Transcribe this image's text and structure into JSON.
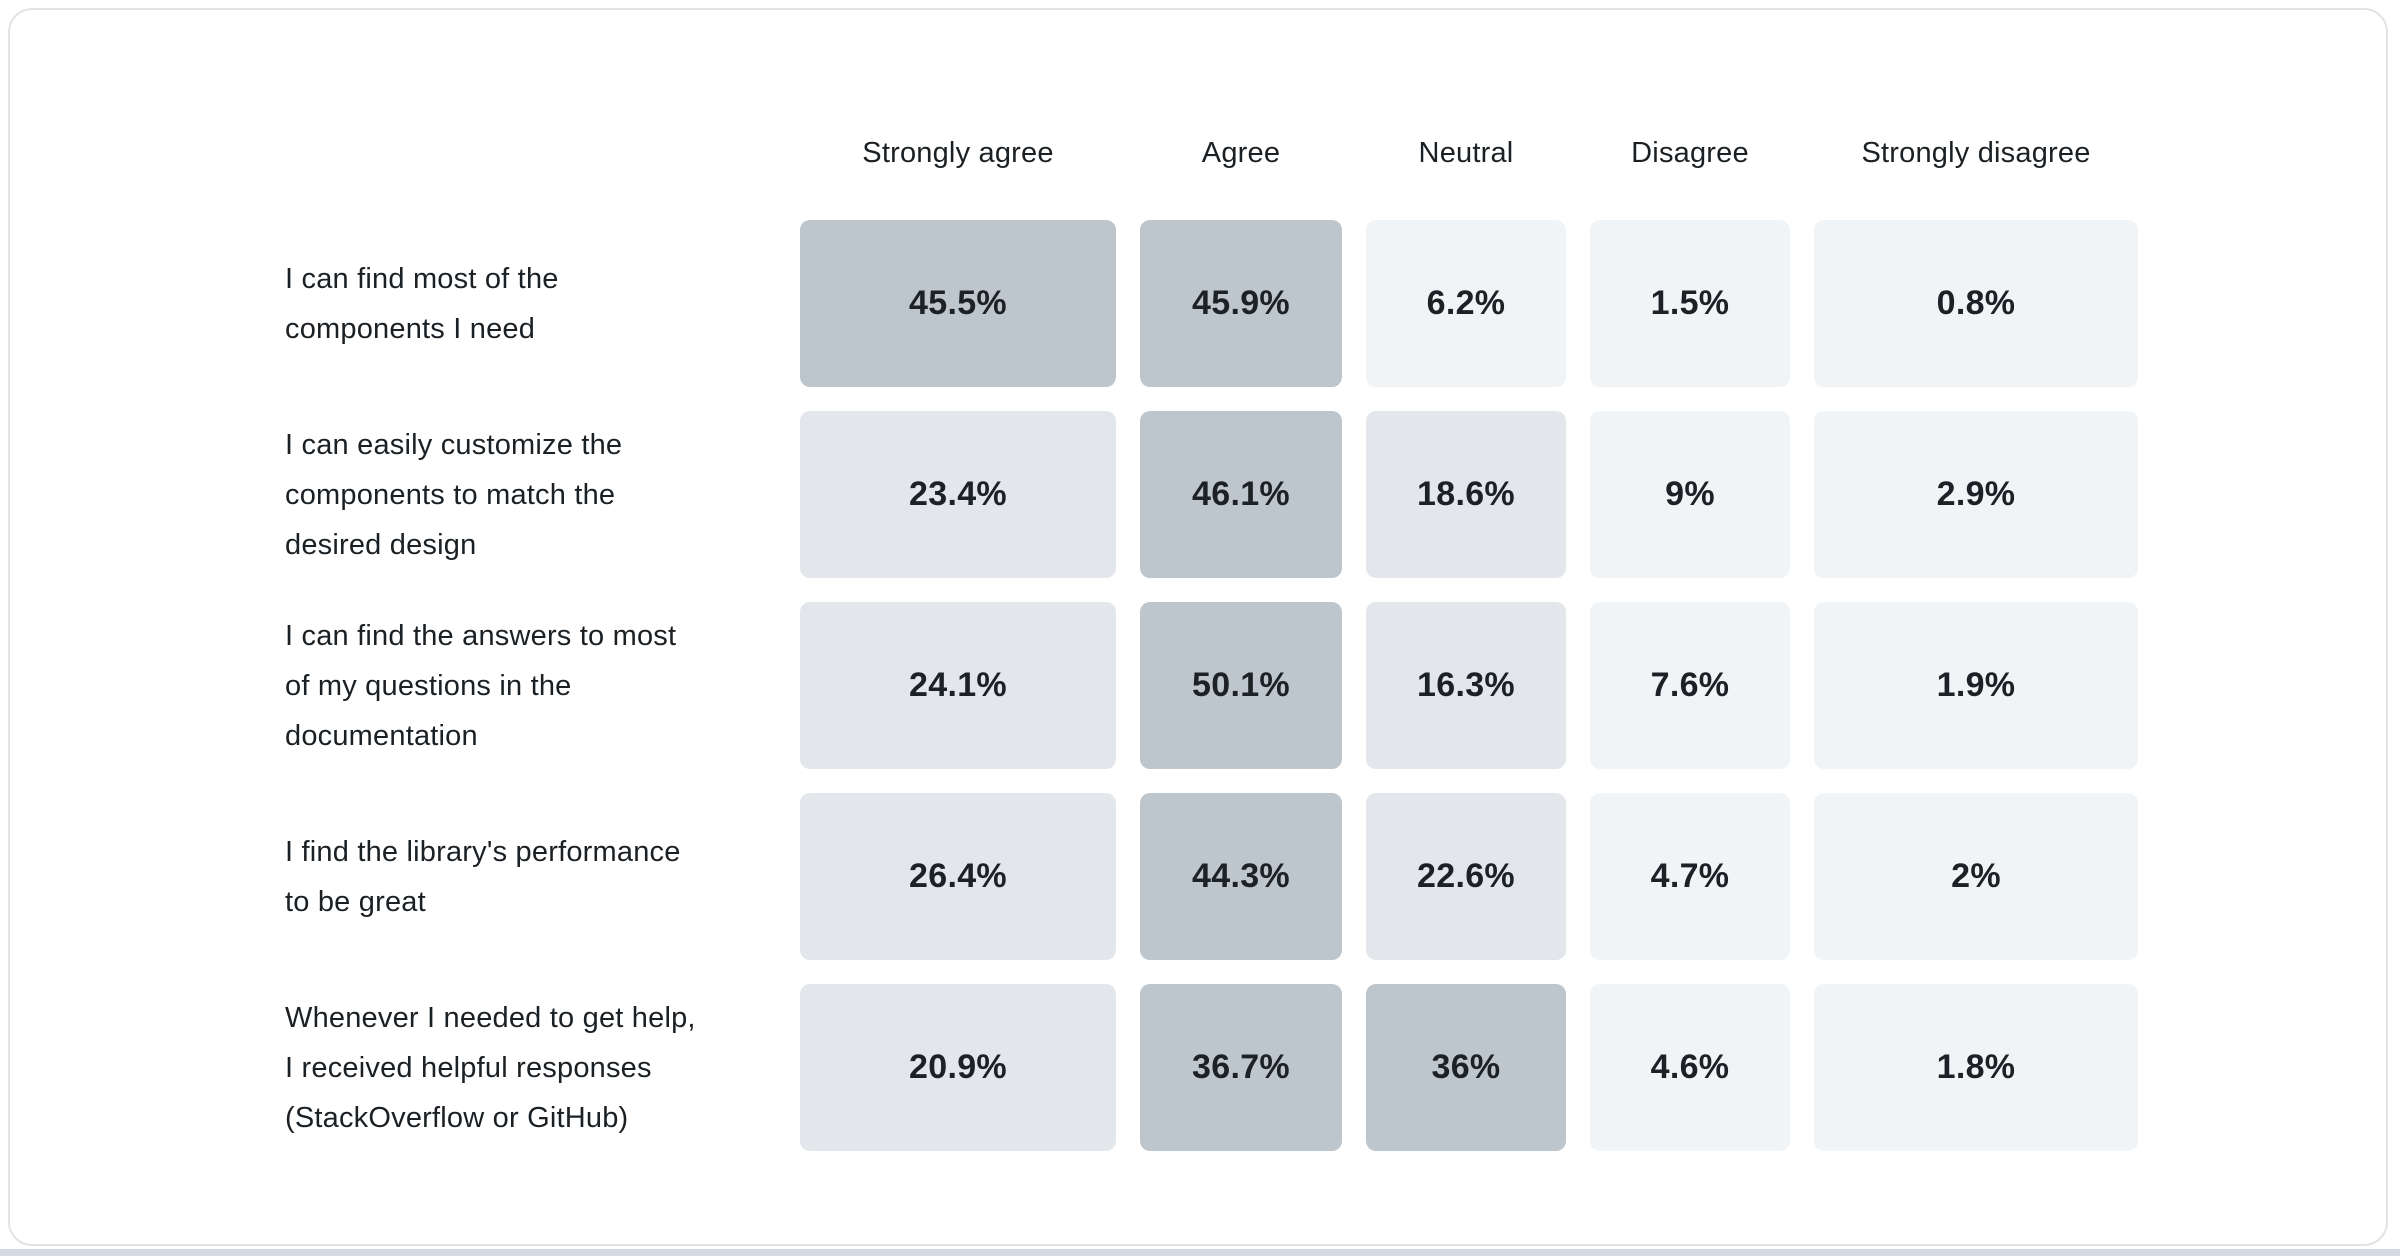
{
  "columns": [
    "Strongly agree",
    "Agree",
    "Neutral",
    "Disagree",
    "Strongly disagree"
  ],
  "rows": [
    {
      "label": "I can find most of the\ncomponents I need",
      "cells": [
        "45.5%",
        "45.9%",
        "6.2%",
        "1.5%",
        "0.8%"
      ]
    },
    {
      "label": "I can easily customize the\ncomponents to match the\ndesired design",
      "cells": [
        "23.4%",
        "46.1%",
        "18.6%",
        "9%",
        "2.9%"
      ]
    },
    {
      "label": "I can find the answers to most\nof my questions in the\ndocumentation",
      "cells": [
        "24.1%",
        "50.1%",
        "16.3%",
        "7.6%",
        "1.9%"
      ]
    },
    {
      "label": "I find the library's performance\nto be great",
      "cells": [
        "26.4%",
        "44.3%",
        "22.6%",
        "4.7%",
        "2%"
      ]
    },
    {
      "label": "Whenever I needed to get help,\nI received helpful responses\n(StackOverflow or GitHub)",
      "cells": [
        "20.9%",
        "36.7%",
        "36%",
        "4.6%",
        "1.8%"
      ]
    }
  ],
  "palette": {
    "cell_high": "#bec6cd",
    "cell_mid": "#e3e7eb",
    "cell_low": "#f1f4f7",
    "threshold_high": 30,
    "threshold_mid": 15,
    "card_background": "#ffffff",
    "card_border": "#e2e4e2",
    "bottom_strip": "#d4dae1",
    "text": "#1b2024"
  },
  "chart_data": {
    "type": "heatmap",
    "title": "",
    "x_labels": [
      "Strongly agree",
      "Agree",
      "Neutral",
      "Disagree",
      "Strongly disagree"
    ],
    "y_labels": [
      "I can find most of the components I need",
      "I can easily customize the components to match the desired design",
      "I can find the answers to most of my questions in the documentation",
      "I find the library's performance to be great",
      "Whenever I needed to get help, I received helpful responses (StackOverflow or GitHub)"
    ],
    "values": [
      [
        45.5,
        45.9,
        6.2,
        1.5,
        0.8
      ],
      [
        23.4,
        46.1,
        18.6,
        9,
        2.9
      ],
      [
        24.1,
        50.1,
        16.3,
        7.6,
        1.9
      ],
      [
        26.4,
        44.3,
        22.6,
        4.7,
        2
      ],
      [
        20.9,
        36.7,
        36,
        4.6,
        1.8
      ]
    ],
    "unit": "%",
    "legend_position": "none",
    "grid": false
  }
}
